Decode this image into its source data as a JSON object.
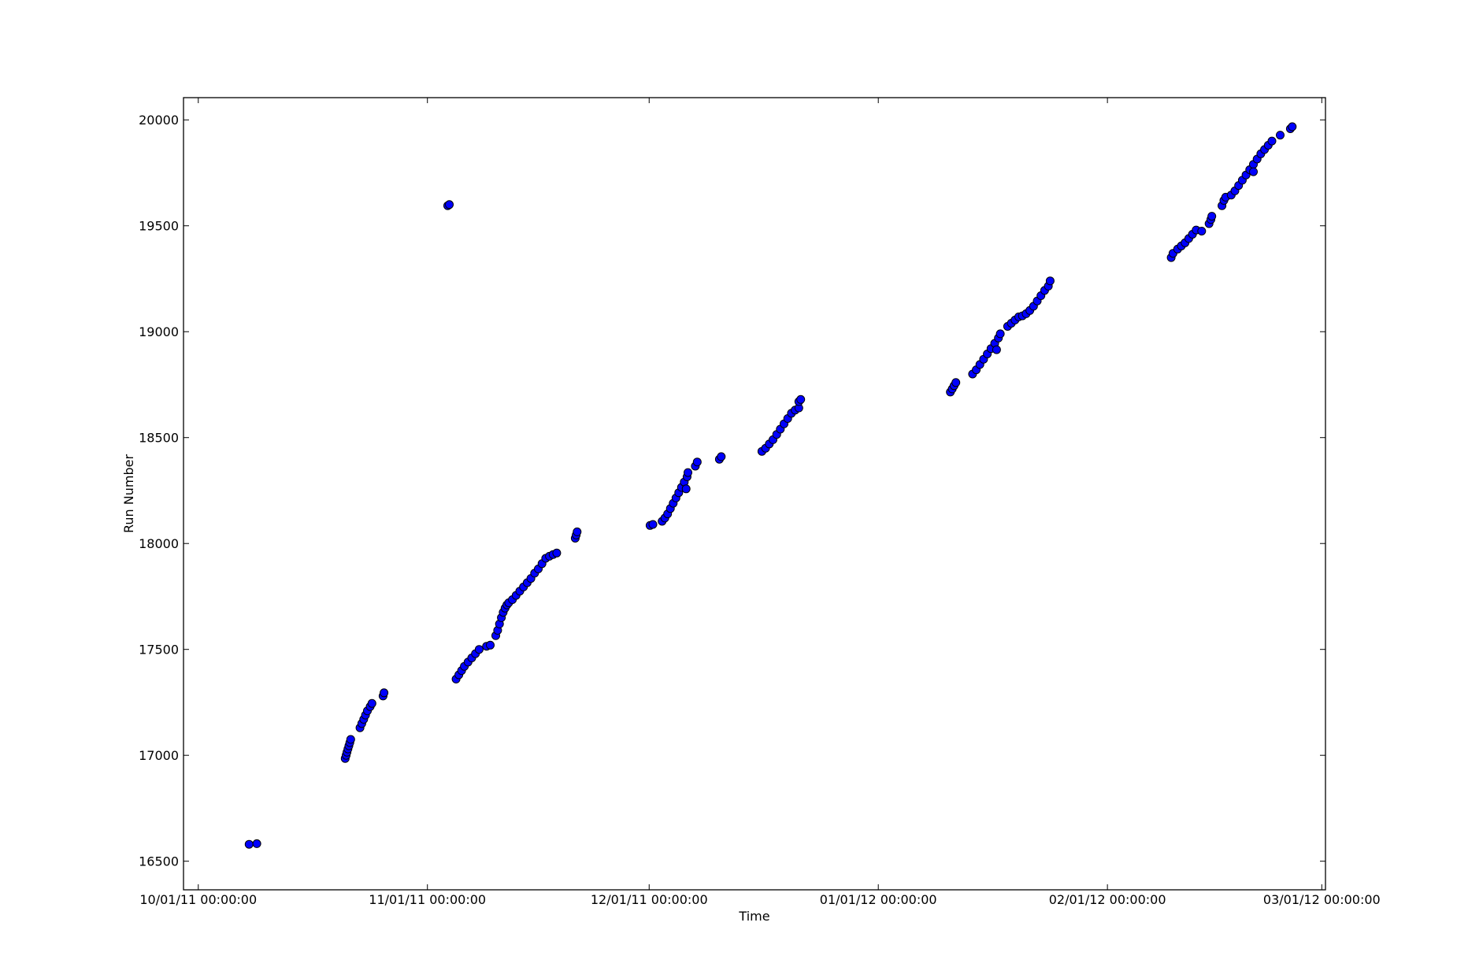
{
  "chart_data": {
    "type": "scatter",
    "title": "",
    "xlabel": "Time",
    "ylabel": "Run Number",
    "xlim": [
      "2011-09-29",
      "2012-03-01T12:00"
    ],
    "ylim": [
      16365,
      20105
    ],
    "x_ticks": [
      {
        "value": "2011-10-01",
        "label": "10/01/11 00:00:00"
      },
      {
        "value": "2011-11-01",
        "label": "11/01/11 00:00:00"
      },
      {
        "value": "2011-12-01",
        "label": "12/01/11 00:00:00"
      },
      {
        "value": "2012-01-01",
        "label": "01/01/12 00:00:00"
      },
      {
        "value": "2012-02-01",
        "label": "02/01/12 00:00:00"
      },
      {
        "value": "2012-03-01",
        "label": "03/01/12 00:00:00"
      }
    ],
    "y_ticks": [
      16500,
      17000,
      17500,
      18000,
      18500,
      19000,
      19500,
      20000
    ],
    "grid": false,
    "marker_color": "#0000ff",
    "marker_edge_color": "#000000",
    "series": [
      {
        "points": [
          [
            "2011-10-07T21:00",
            16580
          ],
          [
            "2011-10-08T22:00",
            16583
          ],
          [
            "2011-10-20T21:00",
            16985
          ],
          [
            "2011-10-21T00:00",
            17000
          ],
          [
            "2011-10-21T03:00",
            17015
          ],
          [
            "2011-10-21T06:00",
            17030
          ],
          [
            "2011-10-21T09:00",
            17045
          ],
          [
            "2011-10-21T12:00",
            17060
          ],
          [
            "2011-10-21T15:00",
            17075
          ],
          [
            "2011-10-22T21:00",
            17130
          ],
          [
            "2011-10-23T03:00",
            17150
          ],
          [
            "2011-10-23T09:00",
            17170
          ],
          [
            "2011-10-23T15:00",
            17190
          ],
          [
            "2011-10-23T21:00",
            17210
          ],
          [
            "2011-10-24T06:00",
            17230
          ],
          [
            "2011-10-24T12:00",
            17245
          ],
          [
            "2011-10-26T00:00",
            17280
          ],
          [
            "2011-10-26T03:00",
            17295
          ],
          [
            "2011-11-03T18:00",
            19595
          ],
          [
            "2011-11-03T23:00",
            19600
          ],
          [
            "2011-11-04T21:00",
            17360
          ],
          [
            "2011-11-05T06:00",
            17380
          ],
          [
            "2011-11-05T15:00",
            17400
          ],
          [
            "2011-11-06T00:00",
            17420
          ],
          [
            "2011-11-06T12:00",
            17440
          ],
          [
            "2011-11-07T00:00",
            17460
          ],
          [
            "2011-11-07T12:00",
            17480
          ],
          [
            "2011-11-08T00:00",
            17500
          ],
          [
            "2011-11-09T00:00",
            17515
          ],
          [
            "2011-11-09T12:00",
            17520
          ],
          [
            "2011-11-10T06:00",
            17565
          ],
          [
            "2011-11-10T12:00",
            17590
          ],
          [
            "2011-11-10T18:00",
            17620
          ],
          [
            "2011-11-11T00:00",
            17650
          ],
          [
            "2011-11-11T06:00",
            17675
          ],
          [
            "2011-11-11T12:00",
            17695
          ],
          [
            "2011-11-11T18:00",
            17710
          ],
          [
            "2011-11-12T00:00",
            17720
          ],
          [
            "2011-11-12T12:00",
            17735
          ],
          [
            "2011-11-13T00:00",
            17755
          ],
          [
            "2011-11-13T12:00",
            17775
          ],
          [
            "2011-11-14T00:00",
            17795
          ],
          [
            "2011-11-14T12:00",
            17815
          ],
          [
            "2011-11-15T00:00",
            17835
          ],
          [
            "2011-11-15T12:00",
            17860
          ],
          [
            "2011-11-16T00:00",
            17880
          ],
          [
            "2011-11-16T12:00",
            17905
          ],
          [
            "2011-11-17T00:00",
            17930
          ],
          [
            "2011-11-17T12:00",
            17940
          ],
          [
            "2011-11-18T00:00",
            17948
          ],
          [
            "2011-11-18T12:00",
            17955
          ],
          [
            "2011-11-21T00:00",
            18025
          ],
          [
            "2011-11-21T03:00",
            18040
          ],
          [
            "2011-11-21T06:00",
            18055
          ],
          [
            "2011-12-01T03:00",
            18085
          ],
          [
            "2011-12-01T12:00",
            18090
          ],
          [
            "2011-12-02T18:00",
            18105
          ],
          [
            "2011-12-03T03:00",
            18120
          ],
          [
            "2011-12-03T12:00",
            18140
          ],
          [
            "2011-12-03T21:00",
            18165
          ],
          [
            "2011-12-04T06:00",
            18190
          ],
          [
            "2011-12-04T15:00",
            18215
          ],
          [
            "2011-12-05T00:00",
            18240
          ],
          [
            "2011-12-05T09:00",
            18265
          ],
          [
            "2011-12-05T18:00",
            18290
          ],
          [
            "2011-12-06T03:00",
            18315
          ],
          [
            "2011-12-06T06:00",
            18335
          ],
          [
            "2011-12-06T00:00",
            18258
          ],
          [
            "2011-12-07T06:00",
            18365
          ],
          [
            "2011-12-07T12:00",
            18385
          ],
          [
            "2011-12-10T12:00",
            18398
          ],
          [
            "2011-12-10T18:00",
            18410
          ],
          [
            "2011-12-16T06:00",
            18435
          ],
          [
            "2011-12-16T18:00",
            18450
          ],
          [
            "2011-12-17T06:00",
            18470
          ],
          [
            "2011-12-17T18:00",
            18490
          ],
          [
            "2011-12-18T06:00",
            18515
          ],
          [
            "2011-12-18T18:00",
            18540
          ],
          [
            "2011-12-19T06:00",
            18565
          ],
          [
            "2011-12-19T18:00",
            18590
          ],
          [
            "2011-12-20T06:00",
            18615
          ],
          [
            "2011-12-20T18:00",
            18630
          ],
          [
            "2011-12-21T06:00",
            18640
          ],
          [
            "2011-12-21T06:00",
            18670
          ],
          [
            "2011-12-21T12:00",
            18680
          ],
          [
            "2012-01-10T18:00",
            18715
          ],
          [
            "2012-01-11T00:00",
            18730
          ],
          [
            "2012-01-11T06:00",
            18745
          ],
          [
            "2012-01-11T12:00",
            18760
          ],
          [
            "2012-01-13T18:00",
            18800
          ],
          [
            "2012-01-14T06:00",
            18820
          ],
          [
            "2012-01-14T18:00",
            18845
          ],
          [
            "2012-01-15T06:00",
            18870
          ],
          [
            "2012-01-15T18:00",
            18895
          ],
          [
            "2012-01-16T06:00",
            18920
          ],
          [
            "2012-01-16T18:00",
            18945
          ],
          [
            "2012-01-17T06:00",
            18970
          ],
          [
            "2012-01-17T12:00",
            18990
          ],
          [
            "2012-01-17T00:00",
            18915
          ],
          [
            "2012-01-18T12:00",
            19025
          ],
          [
            "2012-01-19T00:00",
            19040
          ],
          [
            "2012-01-19T12:00",
            19055
          ],
          [
            "2012-01-20T00:00",
            19070
          ],
          [
            "2012-01-20T12:00",
            19075
          ],
          [
            "2012-01-21T00:00",
            19085
          ],
          [
            "2012-01-21T12:00",
            19100
          ],
          [
            "2012-01-22T00:00",
            19120
          ],
          [
            "2012-01-22T12:00",
            19145
          ],
          [
            "2012-01-23T00:00",
            19170
          ],
          [
            "2012-01-23T12:00",
            19195
          ],
          [
            "2012-01-24T00:00",
            19215
          ],
          [
            "2012-01-24T06:00",
            19240
          ],
          [
            "2012-02-09T15:00",
            19350
          ],
          [
            "2012-02-09T21:00",
            19370
          ],
          [
            "2012-02-10T12:00",
            19390
          ],
          [
            "2012-02-11T00:00",
            19405
          ],
          [
            "2012-02-11T12:00",
            19420
          ],
          [
            "2012-02-12T00:00",
            19440
          ],
          [
            "2012-02-12T12:00",
            19460
          ],
          [
            "2012-02-13T00:00",
            19480
          ],
          [
            "2012-02-13T18:00",
            19475
          ],
          [
            "2012-02-14T18:00",
            19510
          ],
          [
            "2012-02-15T00:00",
            19530
          ],
          [
            "2012-02-15T03:00",
            19545
          ],
          [
            "2012-02-16T12:00",
            19595
          ],
          [
            "2012-02-16T18:00",
            19620
          ],
          [
            "2012-02-17T00:00",
            19635
          ],
          [
            "2012-02-17T18:00",
            19645
          ],
          [
            "2012-02-18T06:00",
            19665
          ],
          [
            "2012-02-18T18:00",
            19690
          ],
          [
            "2012-02-19T06:00",
            19715
          ],
          [
            "2012-02-19T18:00",
            19740
          ],
          [
            "2012-02-20T06:00",
            19765
          ],
          [
            "2012-02-20T18:00",
            19790
          ],
          [
            "2012-02-21T06:00",
            19815
          ],
          [
            "2012-02-21T18:00",
            19840
          ],
          [
            "2012-02-22T06:00",
            19860
          ],
          [
            "2012-02-20T18:00",
            19755
          ],
          [
            "2012-02-22T18:00",
            19880
          ],
          [
            "2012-02-23T06:00",
            19900
          ],
          [
            "2012-02-24T09:00",
            19928
          ],
          [
            "2012-02-25T18:00",
            19958
          ],
          [
            "2012-02-26T00:00",
            19968
          ]
        ]
      }
    ]
  }
}
